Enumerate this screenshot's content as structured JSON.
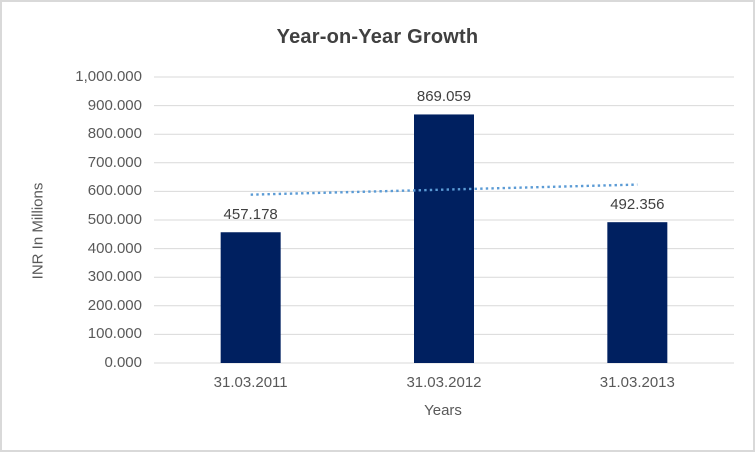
{
  "chart_data": {
    "type": "bar",
    "title": "Year-on-Year Growth",
    "xlabel": "Years",
    "ylabel": "INR In Millions",
    "categories": [
      "31.03.2011",
      "31.03.2012",
      "31.03.2013"
    ],
    "values": [
      457.178,
      869.059,
      492.356
    ],
    "value_labels": [
      "457.178",
      "869.059",
      "492.356"
    ],
    "y_ticks": [
      "1,000.000",
      "900.000",
      "800.000",
      "700.000",
      "600.000",
      "500.000",
      "400.000",
      "300.000",
      "200.000",
      "100.000",
      "0.000"
    ],
    "ylim": [
      0,
      1000
    ],
    "grid": "horizontal",
    "legend": "none",
    "trendline": {
      "type": "linear",
      "style": "dotted"
    }
  },
  "colors": {
    "bar": "#002060",
    "trendline": "#5B9BD5",
    "gridline": "#D9D9D9",
    "border": "#D9D9D9",
    "title_text": "#404040",
    "data_label_text": "#404040",
    "axis_text": "#595959"
  }
}
